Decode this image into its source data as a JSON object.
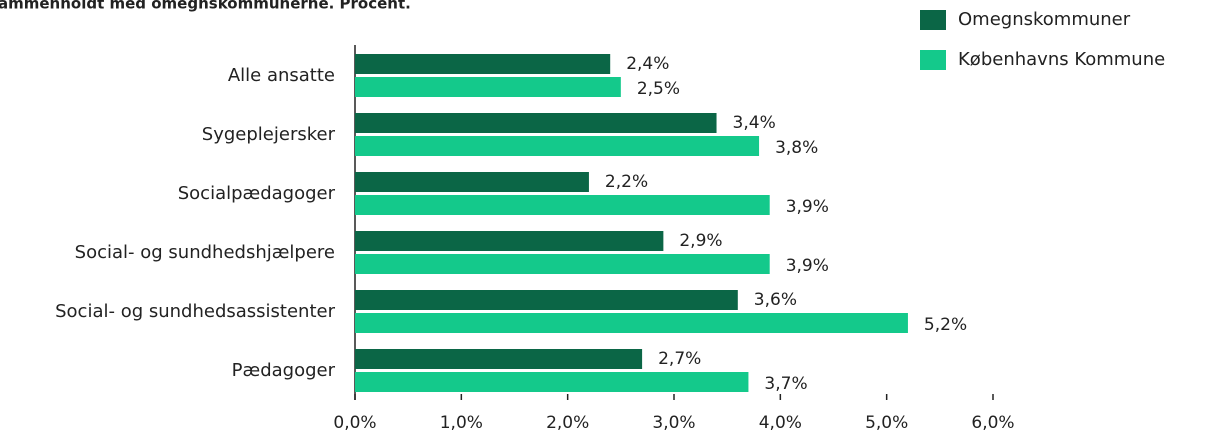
{
  "chart_data": {
    "type": "hbar",
    "title": "ammenholdt med omegnskommunerne. Procent.",
    "categories": [
      "Alle ansatte",
      "Sygeplejersker",
      "Socialpædagoger",
      "Social- og sundhedshjælpere",
      "Social- og sundhedsassistenter",
      "Pædagoger"
    ],
    "series": [
      {
        "name": "Omegnskommuner",
        "color": "#0b6646",
        "values": [
          2.4,
          3.4,
          2.2,
          2.9,
          3.6,
          2.7
        ],
        "value_labels": [
          "2,4%",
          "3,4%",
          "2,2%",
          "2,9%",
          "3,6%",
          "2,7%"
        ]
      },
      {
        "name": "Københavns Kommune",
        "color": "#14c98b",
        "values": [
          2.5,
          3.8,
          3.9,
          3.9,
          5.2,
          3.7
        ],
        "value_labels": [
          "2,5%",
          "3,8%",
          "3,9%",
          "3,9%",
          "5,2%",
          "3,7%"
        ]
      }
    ],
    "xlim": [
      0,
      6
    ],
    "xticks": [
      {
        "value": 0,
        "label": "0,0%"
      },
      {
        "value": 1,
        "label": "1,0%"
      },
      {
        "value": 2,
        "label": "2,0%"
      },
      {
        "value": 3,
        "label": "3,0%"
      },
      {
        "value": 4,
        "label": "4,0%"
      },
      {
        "value": 5,
        "label": "5,0%"
      },
      {
        "value": 6,
        "label": "6,0%"
      }
    ],
    "legend": "top-right"
  }
}
